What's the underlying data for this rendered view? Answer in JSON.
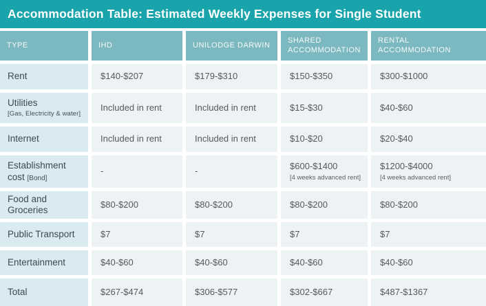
{
  "banner": {
    "title": "Accommodation Table: Estimated Weekly Expenses for Single Student"
  },
  "colors": {
    "banner_teal": "#18a4aa",
    "header_teal": "#7cb8bf",
    "type_column_blue": "#d9eaf0",
    "data_cell_gray": "#edf3f5",
    "text_dark": "#3e4850"
  },
  "table": {
    "columns": [
      "TYPE",
      "IHD",
      "UNILODGE DARWIN",
      "SHARED ACCOMMODATION",
      "RENTAL ACCOMMODATION"
    ],
    "rows": [
      {
        "label": "Rent",
        "values": [
          "$140-$207",
          "$179-$310",
          "$150-$350",
          "$300-$1000"
        ]
      },
      {
        "label": "Utilities",
        "sublabel": "[Gas, Electricity & water]",
        "values": [
          "Included in rent",
          "Included in rent",
          "$15-$30",
          "$40-$60"
        ]
      },
      {
        "label": "Internet",
        "values": [
          "Included in rent",
          "Included in rent",
          "$10-$20",
          "$20-$40"
        ]
      },
      {
        "label": "Establishment cost",
        "sublabel": "[Bond]",
        "values": [
          "-",
          "-",
          "$600-$1400",
          "$1200-$4000"
        ],
        "notes": [
          "",
          "",
          "[4 weeks advanced rent]",
          "[4 weeks advanced rent]"
        ]
      },
      {
        "label": "Food and Groceries",
        "values": [
          "$80-$200",
          "$80-$200",
          "$80-$200",
          "$80-$200"
        ]
      },
      {
        "label": "Public Transport",
        "values": [
          "$7",
          "$7",
          "$7",
          "$7"
        ]
      },
      {
        "label": "Entertainment",
        "values": [
          "$40-$60",
          "$40-$60",
          "$40-$60",
          "$40-$60"
        ]
      },
      {
        "label": "Total",
        "values": [
          "$267-$474",
          "$306-$577",
          "$302-$667",
          "$487-$1367"
        ]
      }
    ]
  }
}
